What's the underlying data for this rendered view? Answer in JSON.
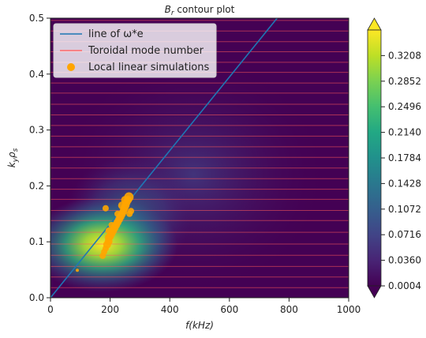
{
  "chart_data": {
    "type": "heatmap",
    "title": "B_r contour plot",
    "xlabel": "f(kHz)",
    "ylabel": "k_y ρ_s",
    "xlim": [
      0,
      1000
    ],
    "ylim": [
      0.0,
      0.5
    ],
    "x_ticks": [
      "0",
      "200",
      "400",
      "600",
      "800",
      "1000"
    ],
    "y_ticks": [
      "0.0",
      "0.1",
      "0.2",
      "0.3",
      "0.4",
      "0.5"
    ],
    "grid": false,
    "legend_position": "top-left",
    "legend": [
      {
        "label": "line of ω*e",
        "kind": "line",
        "color": "#1f77b4"
      },
      {
        "label": "Toroidal mode number",
        "kind": "line",
        "color": "#ff5a5a"
      },
      {
        "label": "Local linear simulations",
        "kind": "marker",
        "color": "#ffa500"
      }
    ],
    "colorbar": {
      "ticks": [
        "0.0004",
        "0.0360",
        "0.0716",
        "0.1072",
        "0.1428",
        "0.1784",
        "0.2140",
        "0.2496",
        "0.2852",
        "0.3208"
      ],
      "vmin": 0.0004,
      "vmax": 0.3564,
      "extend": "both",
      "colormap": "viridis"
    },
    "intensity_peaks": [
      {
        "f_khz": 175,
        "kyrho": 0.095,
        "value": 0.3
      },
      {
        "f_khz": 260,
        "kyrho": 0.145,
        "value": 0.1
      },
      {
        "f_khz": 480,
        "kyrho": 0.22,
        "value": 0.04
      }
    ],
    "diamagnetic_line": {
      "x": [
        0,
        760
      ],
      "y": [
        0.0,
        0.5
      ]
    },
    "toroidal_mode_kyrho": [
      0.018,
      0.037,
      0.056,
      0.076,
      0.096,
      0.117,
      0.138,
      0.156,
      0.176,
      0.194,
      0.213,
      0.232,
      0.251,
      0.27,
      0.289,
      0.308,
      0.327,
      0.346,
      0.366,
      0.384,
      0.403,
      0.421,
      0.44,
      0.458,
      0.477,
      0.496
    ],
    "simulations": [
      {
        "x": 90,
        "y": 0.049,
        "s": 2
      },
      {
        "x": 175,
        "y": 0.075,
        "s": 4
      },
      {
        "x": 180,
        "y": 0.082,
        "s": 4
      },
      {
        "x": 185,
        "y": 0.088,
        "s": 4
      },
      {
        "x": 190,
        "y": 0.095,
        "s": 5
      },
      {
        "x": 195,
        "y": 0.101,
        "s": 5
      },
      {
        "x": 195,
        "y": 0.108,
        "s": 5
      },
      {
        "x": 200,
        "y": 0.11,
        "s": 5
      },
      {
        "x": 205,
        "y": 0.115,
        "s": 5
      },
      {
        "x": 210,
        "y": 0.12,
        "s": 5
      },
      {
        "x": 215,
        "y": 0.125,
        "s": 5
      },
      {
        "x": 220,
        "y": 0.13,
        "s": 5
      },
      {
        "x": 225,
        "y": 0.135,
        "s": 5
      },
      {
        "x": 230,
        "y": 0.14,
        "s": 5
      },
      {
        "x": 235,
        "y": 0.145,
        "s": 5
      },
      {
        "x": 240,
        "y": 0.15,
        "s": 5
      },
      {
        "x": 245,
        "y": 0.155,
        "s": 5
      },
      {
        "x": 248,
        "y": 0.16,
        "s": 5
      },
      {
        "x": 252,
        "y": 0.165,
        "s": 5
      },
      {
        "x": 255,
        "y": 0.17,
        "s": 5
      },
      {
        "x": 260,
        "y": 0.175,
        "s": 5
      },
      {
        "x": 263,
        "y": 0.18,
        "s": 6
      },
      {
        "x": 265,
        "y": 0.15,
        "s": 4
      },
      {
        "x": 270,
        "y": 0.155,
        "s": 4
      },
      {
        "x": 225,
        "y": 0.15,
        "s": 4
      },
      {
        "x": 205,
        "y": 0.13,
        "s": 4
      },
      {
        "x": 185,
        "y": 0.16,
        "s": 4
      },
      {
        "x": 195,
        "y": 0.12,
        "s": 4
      },
      {
        "x": 250,
        "y": 0.175,
        "s": 5
      },
      {
        "x": 240,
        "y": 0.165,
        "s": 5
      }
    ]
  }
}
